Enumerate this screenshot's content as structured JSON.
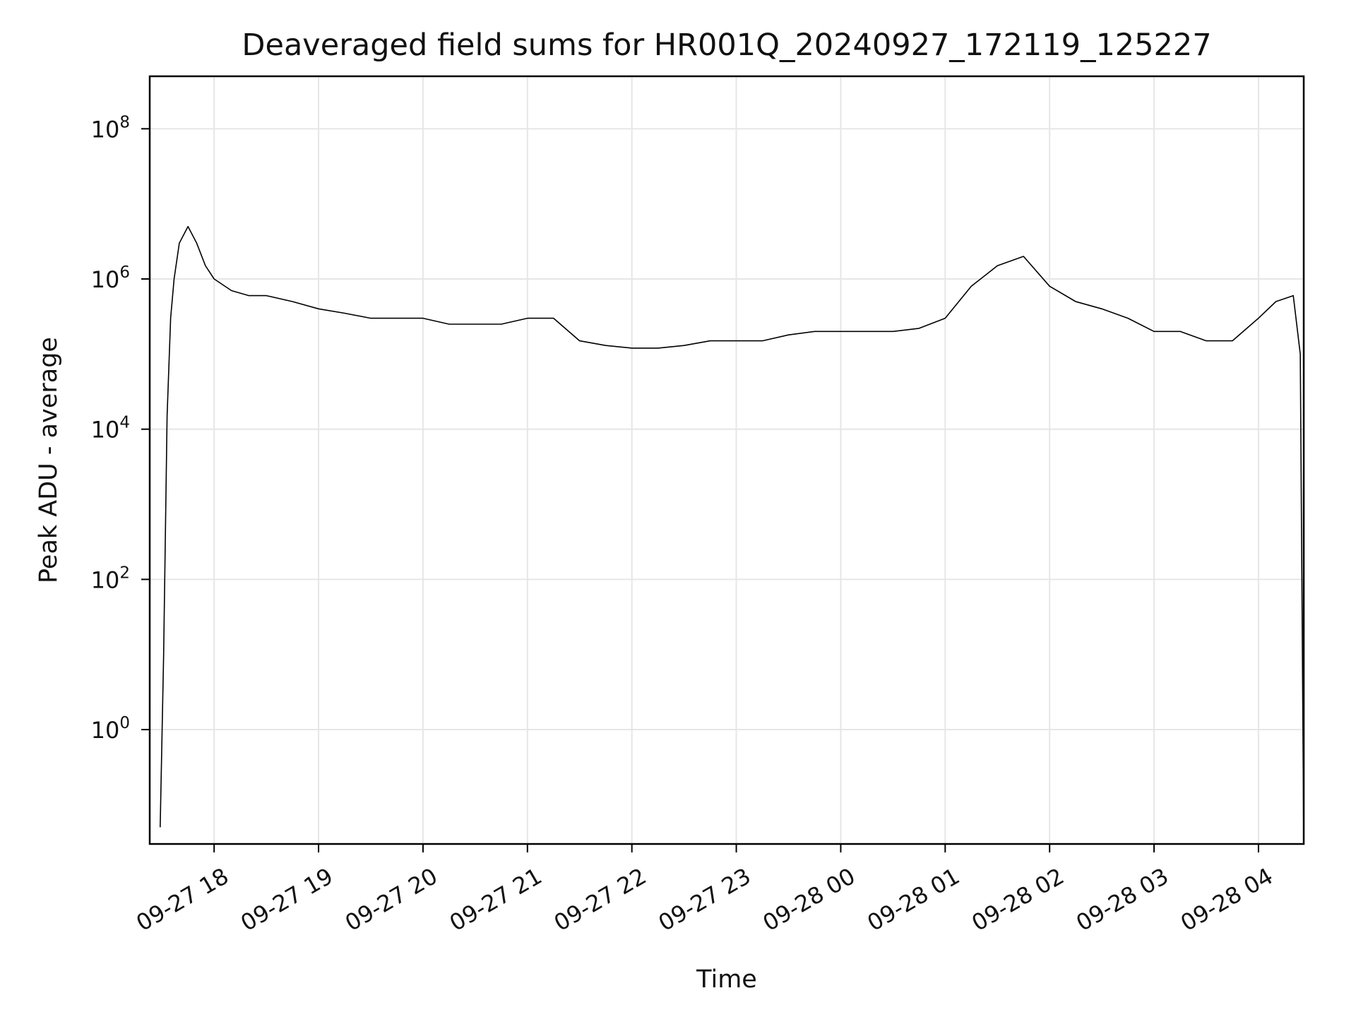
{
  "chart_data": {
    "type": "line",
    "title": "Deaveraged field sums for HR001Q_20240927_172119_125227",
    "xlabel": "Time",
    "ylabel": "Peak ADU - average",
    "yscale": "log",
    "grid": true,
    "line_color": "#000000",
    "grid_color": "#e6e6e6",
    "x_range": [
      "2024-09-27 17:23",
      "2024-09-28 04:26"
    ],
    "ylim": [
      0.03,
      500000000.0
    ],
    "x_ticks": [
      "09-27 18",
      "09-27 19",
      "09-27 20",
      "09-27 21",
      "09-27 22",
      "09-27 23",
      "09-28 00",
      "09-28 01",
      "09-28 02",
      "09-28 03",
      "09-28 04"
    ],
    "y_ticks": [
      {
        "value": 1,
        "base": "10",
        "exp": "0"
      },
      {
        "value": 100,
        "base": "10",
        "exp": "2"
      },
      {
        "value": 10000,
        "base": "10",
        "exp": "4"
      },
      {
        "value": 1000000,
        "base": "10",
        "exp": "6"
      },
      {
        "value": 100000000,
        "base": "10",
        "exp": "8"
      }
    ],
    "series": [
      {
        "x": [
          "2024-09-27 17:29",
          "2024-09-27 17:31",
          "2024-09-27 17:33",
          "2024-09-27 17:35",
          "2024-09-27 17:37",
          "2024-09-27 17:40",
          "2024-09-27 17:45",
          "2024-09-27 17:50",
          "2024-09-27 17:55",
          "2024-09-27 18:00",
          "2024-09-27 18:10",
          "2024-09-27 18:20",
          "2024-09-27 18:30",
          "2024-09-27 18:45",
          "2024-09-27 19:00",
          "2024-09-27 19:15",
          "2024-09-27 19:30",
          "2024-09-27 19:45",
          "2024-09-27 20:00",
          "2024-09-27 20:15",
          "2024-09-27 20:30",
          "2024-09-27 20:45",
          "2024-09-27 21:00",
          "2024-09-27 21:15",
          "2024-09-27 21:30",
          "2024-09-27 21:45",
          "2024-09-27 22:00",
          "2024-09-27 22:15",
          "2024-09-27 22:30",
          "2024-09-27 22:45",
          "2024-09-27 23:00",
          "2024-09-27 23:15",
          "2024-09-27 23:30",
          "2024-09-27 23:45",
          "2024-09-28 00:00",
          "2024-09-28 00:15",
          "2024-09-28 00:30",
          "2024-09-28 00:45",
          "2024-09-28 01:00",
          "2024-09-28 01:15",
          "2024-09-28 01:30",
          "2024-09-28 01:45",
          "2024-09-28 02:00",
          "2024-09-28 02:15",
          "2024-09-28 02:30",
          "2024-09-28 02:45",
          "2024-09-28 03:00",
          "2024-09-28 03:15",
          "2024-09-28 03:30",
          "2024-09-28 03:45",
          "2024-09-28 04:00",
          "2024-09-28 04:10",
          "2024-09-28 04:20",
          "2024-09-28 04:24",
          "2024-09-28 04:26"
        ],
        "y": [
          0.05,
          10,
          15000,
          300000,
          1000000,
          3000000,
          5000000,
          3000000,
          1500000,
          1000000,
          700000,
          600000,
          600000,
          500000,
          400000,
          350000,
          300000,
          300000,
          300000,
          250000,
          250000,
          250000,
          300000,
          300000,
          150000,
          130000,
          120000,
          120000,
          130000,
          150000,
          150000,
          150000,
          180000,
          200000,
          200000,
          200000,
          200000,
          220000,
          300000,
          800000,
          1500000,
          2000000,
          800000,
          500000,
          400000,
          300000,
          200000,
          200000,
          150000,
          150000,
          300000,
          500000,
          600000,
          100000,
          0.03
        ]
      }
    ]
  }
}
